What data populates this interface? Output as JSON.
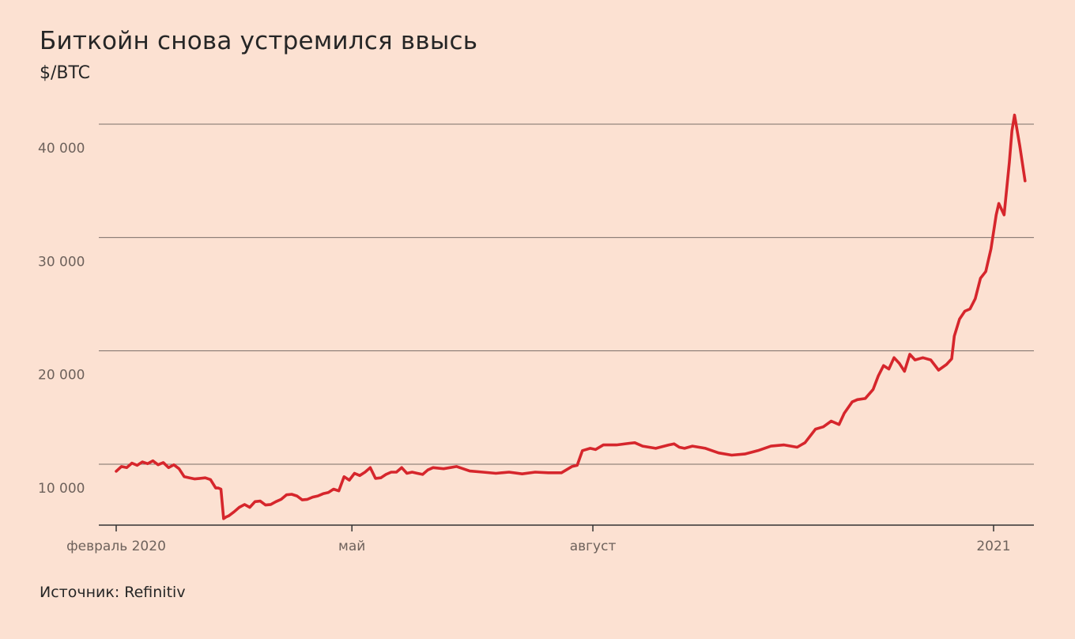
{
  "header": {
    "title": "Биткойн снова устремился ввысь",
    "unit": "$/BTC"
  },
  "footer": {
    "source": "Источник: Refinitiv"
  },
  "colors": {
    "background": "#fce1d2",
    "line": "#d6262c",
    "grid": "#7a6e68",
    "axis": "#333333"
  },
  "chart_data": {
    "type": "line",
    "title": "Биткойн снова устремился ввысь",
    "ylabel": "$/BTC",
    "xlabel": "",
    "ylim": [
      6000,
      40500
    ],
    "grid": true,
    "y_ticks": [
      {
        "value": 10000,
        "label": "10 000"
      },
      {
        "value": 20000,
        "label": "20 000"
      },
      {
        "value": 30000,
        "label": "30 000"
      },
      {
        "value": 40000,
        "label": "40 000"
      }
    ],
    "x_ticks": [
      {
        "date": "2020-02-01",
        "label": "февраль 2020"
      },
      {
        "date": "2020-05-01",
        "label": "май"
      },
      {
        "date": "2020-08-01",
        "label": "август"
      },
      {
        "date": "2021-01-01",
        "label": "2021"
      }
    ],
    "series": [
      {
        "x": [
          "2020-02-01",
          "2020-02-03",
          "2020-02-05",
          "2020-02-07",
          "2020-02-09",
          "2020-02-11",
          "2020-02-13",
          "2020-02-15",
          "2020-02-17",
          "2020-02-19",
          "2020-02-21",
          "2020-02-23",
          "2020-02-25",
          "2020-02-27",
          "2020-02-29",
          "2020-03-02",
          "2020-03-04",
          "2020-03-06",
          "2020-03-08",
          "2020-03-10",
          "2020-03-11",
          "2020-03-12",
          "2020-03-13",
          "2020-03-14",
          "2020-03-15",
          "2020-03-17",
          "2020-03-19",
          "2020-03-21",
          "2020-03-23",
          "2020-03-25",
          "2020-03-27",
          "2020-03-29",
          "2020-03-31",
          "2020-04-02",
          "2020-04-04",
          "2020-04-06",
          "2020-04-08",
          "2020-04-10",
          "2020-04-12",
          "2020-04-14",
          "2020-04-16",
          "2020-04-18",
          "2020-04-20",
          "2020-04-22",
          "2020-04-24",
          "2020-04-26",
          "2020-04-28",
          "2020-04-30",
          "2020-05-02",
          "2020-05-04",
          "2020-05-06",
          "2020-05-08",
          "2020-05-10",
          "2020-05-12",
          "2020-05-14",
          "2020-05-16",
          "2020-05-18",
          "2020-05-20",
          "2020-05-22",
          "2020-05-24",
          "2020-05-26",
          "2020-05-28",
          "2020-05-30",
          "2020-06-01",
          "2020-06-05",
          "2020-06-10",
          "2020-06-15",
          "2020-06-20",
          "2020-06-25",
          "2020-06-30",
          "2020-07-05",
          "2020-07-10",
          "2020-07-15",
          "2020-07-20",
          "2020-07-24",
          "2020-07-26",
          "2020-07-28",
          "2020-07-31",
          "2020-08-02",
          "2020-08-05",
          "2020-08-10",
          "2020-08-15",
          "2020-08-17",
          "2020-08-20",
          "2020-08-25",
          "2020-08-30",
          "2020-09-01",
          "2020-09-03",
          "2020-09-05",
          "2020-09-08",
          "2020-09-13",
          "2020-09-18",
          "2020-09-23",
          "2020-09-28",
          "2020-10-03",
          "2020-10-08",
          "2020-10-13",
          "2020-10-18",
          "2020-10-21",
          "2020-10-25",
          "2020-10-28",
          "2020-10-31",
          "2020-11-03",
          "2020-11-05",
          "2020-11-08",
          "2020-11-10",
          "2020-11-13",
          "2020-11-16",
          "2020-11-18",
          "2020-11-20",
          "2020-11-22",
          "2020-11-24",
          "2020-11-26",
          "2020-11-28",
          "2020-11-30",
          "2020-12-02",
          "2020-12-05",
          "2020-12-08",
          "2020-12-11",
          "2020-12-14",
          "2020-12-16",
          "2020-12-17",
          "2020-12-19",
          "2020-12-21",
          "2020-12-23",
          "2020-12-25",
          "2020-12-27",
          "2020-12-29",
          "2020-12-31",
          "2021-01-02",
          "2021-01-03",
          "2021-01-05",
          "2021-01-07",
          "2021-01-08",
          "2021-01-09",
          "2021-01-11",
          "2021-01-13"
        ],
        "values": [
          9380,
          9800,
          9700,
          10100,
          9900,
          10200,
          10050,
          10300,
          9950,
          10150,
          9700,
          9950,
          9600,
          8900,
          8800,
          8700,
          8750,
          8800,
          8650,
          7900,
          7900,
          7800,
          5200,
          5350,
          5450,
          5800,
          6200,
          6450,
          6200,
          6700,
          6750,
          6400,
          6450,
          6700,
          6900,
          7300,
          7350,
          7200,
          6850,
          6900,
          7100,
          7200,
          7400,
          7500,
          7800,
          7650,
          8900,
          8600,
          9200,
          9000,
          9300,
          9700,
          8750,
          8800,
          9100,
          9300,
          9300,
          9700,
          9200,
          9300,
          9200,
          9100,
          9500,
          9700,
          9600,
          9800,
          9400,
          9300,
          9200,
          9300,
          9150,
          9300,
          9250,
          9250,
          9800,
          9900,
          11200,
          11400,
          11300,
          11700,
          11700,
          11850,
          11900,
          11600,
          11400,
          11700,
          11800,
          11500,
          11400,
          11600,
          11400,
          11000,
          10800,
          10900,
          11200,
          11600,
          11700,
          11500,
          11900,
          13100,
          13300,
          13800,
          13500,
          14500,
          15500,
          15700,
          15800,
          16600,
          17800,
          18700,
          18400,
          19400,
          18900,
          18200,
          19700,
          19200,
          19400,
          19200,
          18300,
          18800,
          19300,
          21300,
          22800,
          23500,
          23700,
          24600,
          26400,
          27000,
          29000,
          32000,
          33000,
          32000,
          36600,
          39400,
          40800,
          38100,
          35000
        ]
      }
    ]
  }
}
